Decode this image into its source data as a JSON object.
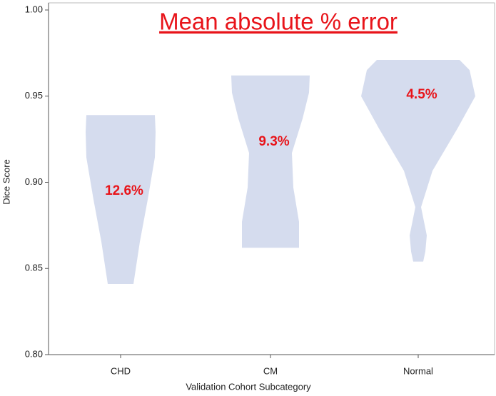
{
  "chart_data": {
    "type": "violin",
    "title": "Mean absolute % error",
    "x_label": "Validation Cohort Subcategory",
    "y_label": "Dice Score",
    "categories": [
      "CHD",
      "CM",
      "Normal"
    ],
    "max": [
      0.939,
      0.962,
      0.971
    ],
    "min": [
      0.841,
      0.862,
      0.854
    ],
    "annotations": [
      "12.6%",
      "9.3%",
      "4.5%"
    ],
    "color": "#d5dcee",
    "ylim": [
      0.8,
      1.0
    ],
    "yticks": [
      {
        "value": 0.8,
        "label": "0.80"
      },
      {
        "value": 0.85,
        "label": "0.85"
      },
      {
        "value": 0.9,
        "label": "0.90"
      },
      {
        "value": 0.95,
        "label": "0.95"
      },
      {
        "value": 1.0,
        "label": "1.00"
      }
    ]
  }
}
